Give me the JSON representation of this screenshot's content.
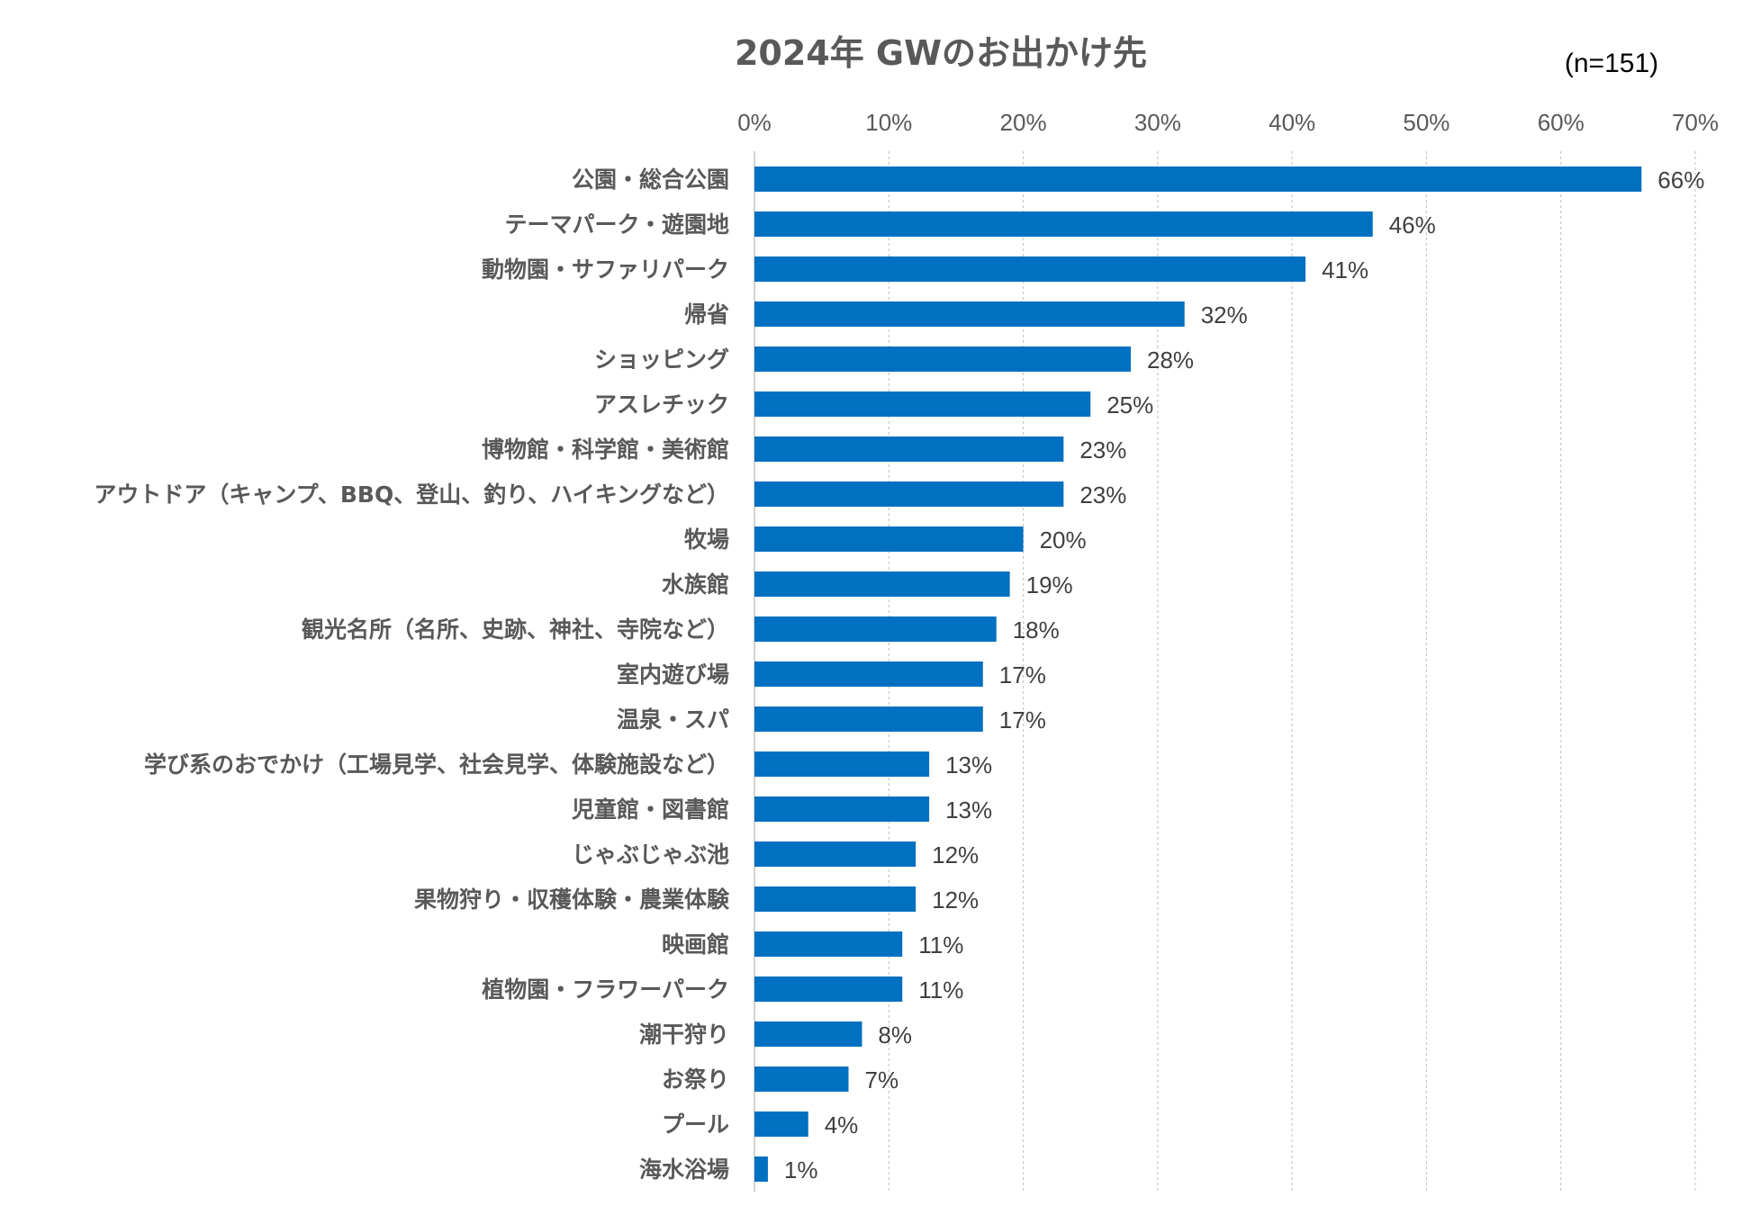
{
  "chart_data": {
    "type": "bar",
    "orientation": "horizontal",
    "title": "2024年 GWのお出かけ先",
    "note": "(n=151)",
    "xlim": [
      0,
      70
    ],
    "ticks": [
      0,
      10,
      20,
      30,
      40,
      50,
      60,
      70
    ],
    "tick_labels": [
      "0%",
      "10%",
      "20%",
      "30%",
      "40%",
      "50%",
      "60%",
      "70%"
    ],
    "grid": true,
    "bar_color": "#0070C0",
    "categories": [
      "公園・総合公園",
      "テーマパーク・遊園地",
      "動物園・サファリパーク",
      "帰省",
      "ショッピング",
      "アスレチック",
      "博物館・科学館・美術館",
      "アウトドア（キャンプ、BBQ、登山、釣り、ハイキングなど）",
      "牧場",
      "水族館",
      "観光名所（名所、史跡、神社、寺院など）",
      "室内遊び場",
      "温泉・スパ",
      "学び系のおでかけ（工場見学、社会見学、体験施設など）",
      "児童館・図書館",
      "じゃぶじゃぶ池",
      "果物狩り・収穫体験・農業体験",
      "映画館",
      "植物園・フラワーパーク",
      "潮干狩り",
      "お祭り",
      "プール",
      "海水浴場"
    ],
    "values": [
      66,
      46,
      41,
      32,
      28,
      25,
      23,
      23,
      20,
      19,
      18,
      17,
      17,
      13,
      13,
      12,
      12,
      11,
      11,
      8,
      7,
      4,
      1
    ],
    "value_labels": [
      "66%",
      "46%",
      "41%",
      "32%",
      "28%",
      "25%",
      "23%",
      "23%",
      "20%",
      "19%",
      "18%",
      "17%",
      "17%",
      "13%",
      "13%",
      "12%",
      "12%",
      "11%",
      "11%",
      "8%",
      "7%",
      "4%",
      "1%"
    ]
  }
}
